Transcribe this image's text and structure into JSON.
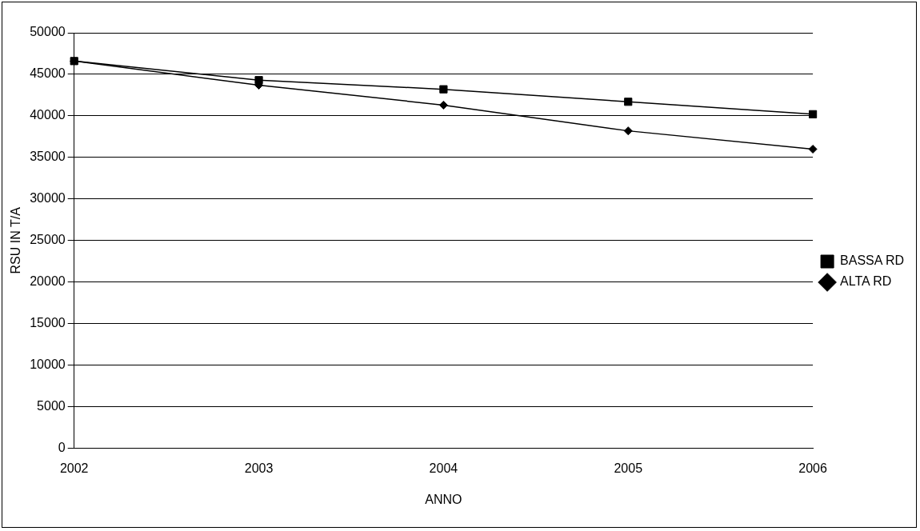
{
  "chart_data": {
    "type": "line",
    "xlabel": "ANNO",
    "ylabel": "RSU IN T/A",
    "categories": [
      "2002",
      "2003",
      "2004",
      "2005",
      "2006"
    ],
    "series": [
      {
        "name": "ALTA RD",
        "color": "#000000",
        "marker": "diamond",
        "values": [
          46600,
          43700,
          41300,
          38200,
          36000
        ]
      },
      {
        "name": "BASSA RD",
        "color": "#000000",
        "marker": "square",
        "values": [
          46600,
          44300,
          43200,
          41700,
          40200
        ]
      }
    ],
    "ylim": [
      0,
      50000
    ],
    "yticks": [
      0,
      5000,
      10000,
      15000,
      20000,
      25000,
      30000,
      35000,
      40000,
      45000,
      50000
    ],
    "grid": "y",
    "legend": "right",
    "line_style": "solid"
  }
}
